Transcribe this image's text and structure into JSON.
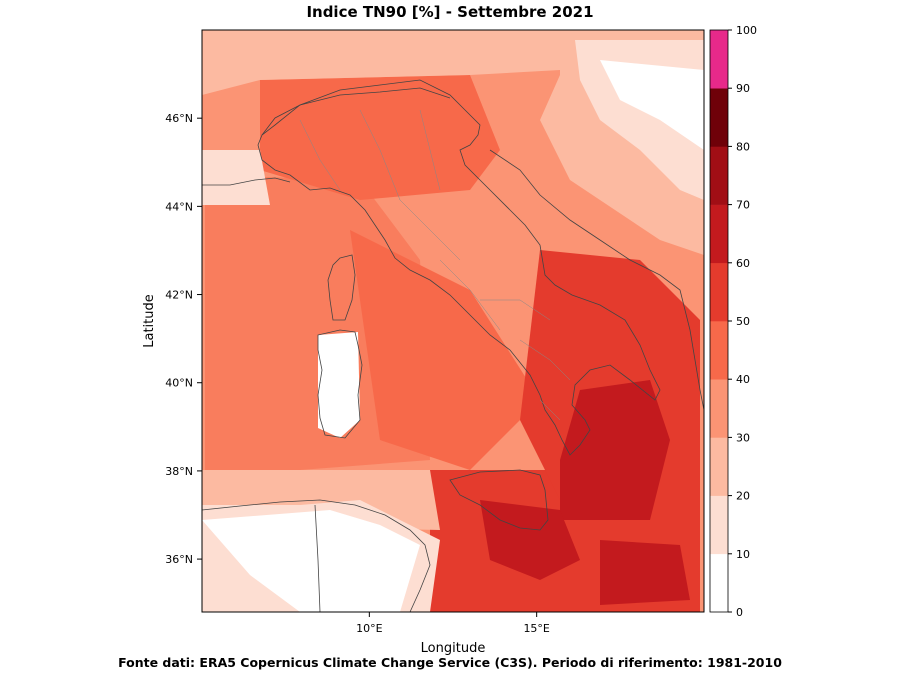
{
  "title": "Indice TN90 [%] - Settembre 2021",
  "footer": "Fonte dati: ERA5 Copernicus Climate Change Service (C3S). Periodo di riferimento: 1981-2010",
  "map": {
    "xlabel": "Longitude",
    "ylabel": "Latitude",
    "lon_range": [
      5.0,
      20.0
    ],
    "lat_range": [
      34.8,
      48.0
    ],
    "x_ticks": [
      "10°E",
      "15°E"
    ],
    "x_tick_values": [
      10,
      15
    ],
    "y_ticks": [
      "36°N",
      "38°N",
      "40°N",
      "42°N",
      "44°N",
      "46°N"
    ],
    "y_tick_values": [
      36,
      38,
      40,
      42,
      44,
      46
    ]
  },
  "colorbar": {
    "tick_labels": [
      "0",
      "10",
      "20",
      "30",
      "40",
      "50",
      "60",
      "70",
      "80",
      "90",
      "100"
    ],
    "colors": [
      "#ffffff",
      "#fdded2",
      "#fcbaa1",
      "#fb9474",
      "#f7694a",
      "#e43b2d",
      "#c31a1e",
      "#a10e15",
      "#6f0109",
      "#e7298a"
    ]
  }
}
